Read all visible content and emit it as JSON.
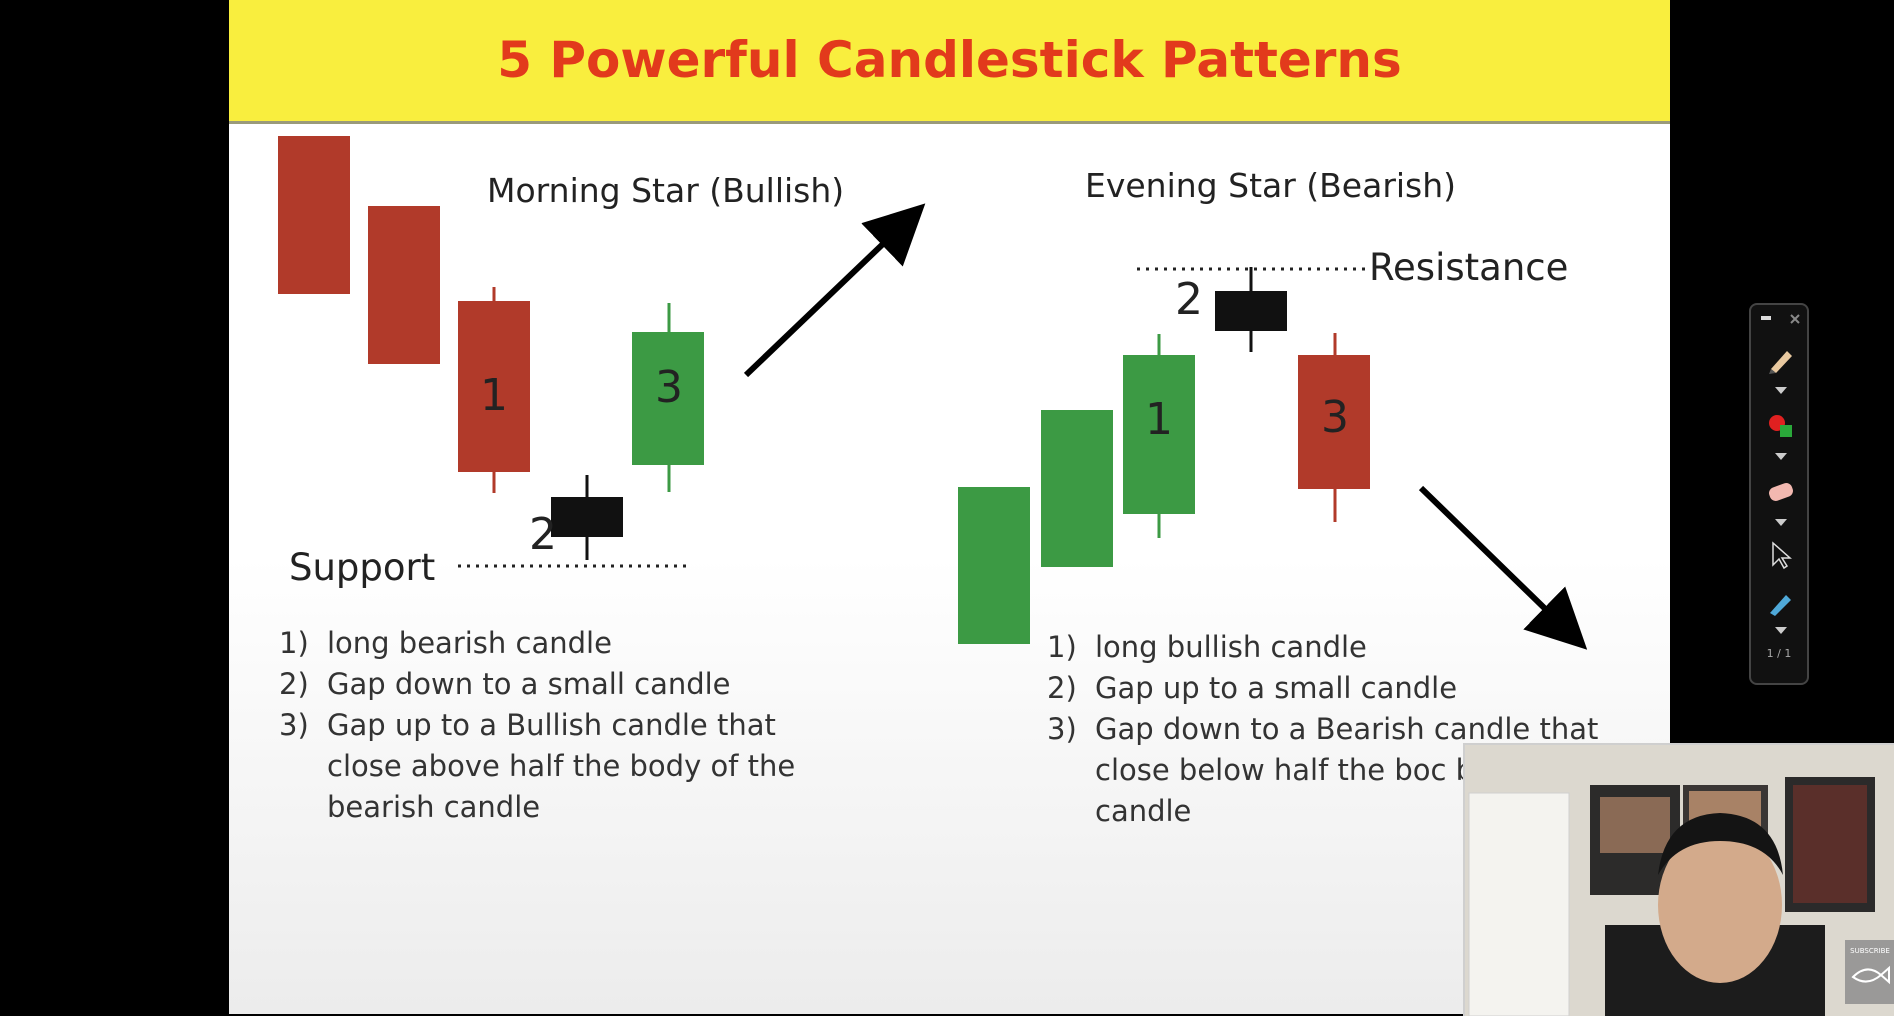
{
  "slide": {
    "title": "5 Powerful Candlestick Patterns"
  },
  "morning_star": {
    "heading": "Morning Star (Bullish)",
    "support_label": "Support",
    "candle_labels": [
      "1",
      "2",
      "3"
    ],
    "steps": [
      {
        "num": "1)",
        "text": "long bearish candle"
      },
      {
        "num": "2)",
        "text": "Gap down to a small candle"
      },
      {
        "num": "3)",
        "text": "Gap up to a Bullish candle that close above half the body of the bearish candle"
      }
    ]
  },
  "evening_star": {
    "heading": "Evening Star (Bearish)",
    "resistance_label": "Resistance",
    "candle_labels": [
      "1",
      "2",
      "3"
    ],
    "steps": [
      {
        "num": "1)",
        "text": "long bullish candle"
      },
      {
        "num": "2)",
        "text": "Gap up to a small candle"
      },
      {
        "num": "3)",
        "text": "Gap down to a Bearish candle that close below half the boc bullish candle"
      }
    ]
  },
  "toolbar": {
    "icons": [
      "pen-icon",
      "color-picker-icon",
      "eraser-icon",
      "cursor-icon",
      "highlighter-icon"
    ],
    "footer": "1 / 1"
  },
  "webcam": {
    "subscribe_label": "SUBSCRIBE"
  },
  "colors": {
    "title_bar": "#f9ee3e",
    "title_text": "#e23a1c",
    "bearish": "#b13a2a",
    "bullish": "#3c9a44",
    "doji": "#111111"
  }
}
